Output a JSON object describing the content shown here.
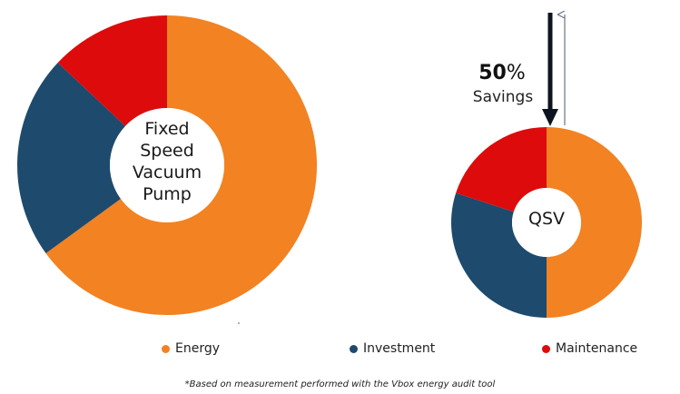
{
  "chart_data": [
    {
      "type": "pie",
      "style": "donut",
      "center_label": [
        "Fixed",
        "Speed",
        "Vacuum",
        "Pump"
      ],
      "categories": [
        "Energy",
        "Investment",
        "Maintenance"
      ],
      "values": [
        65,
        22,
        13
      ],
      "value_unit": "% (estimated from slice sizes)"
    },
    {
      "type": "pie",
      "style": "donut",
      "center_label": [
        "QSV"
      ],
      "categories": [
        "Energy",
        "Investment",
        "Maintenance"
      ],
      "values": [
        50,
        30,
        20
      ],
      "value_unit": "% (estimated from slice sizes)"
    }
  ],
  "legend": [
    {
      "label": "Energy",
      "color": "#f28222"
    },
    {
      "label": "Investment",
      "color": "#1e4a6e"
    },
    {
      "label": "Maintenance",
      "color": "#dd0b0b"
    }
  ],
  "annotation": {
    "savings_percent": "50",
    "savings_percent_sign": "%",
    "savings_word": "Savings"
  },
  "footnote": "*Based on measurement performed with the Vbox energy audit tool"
}
